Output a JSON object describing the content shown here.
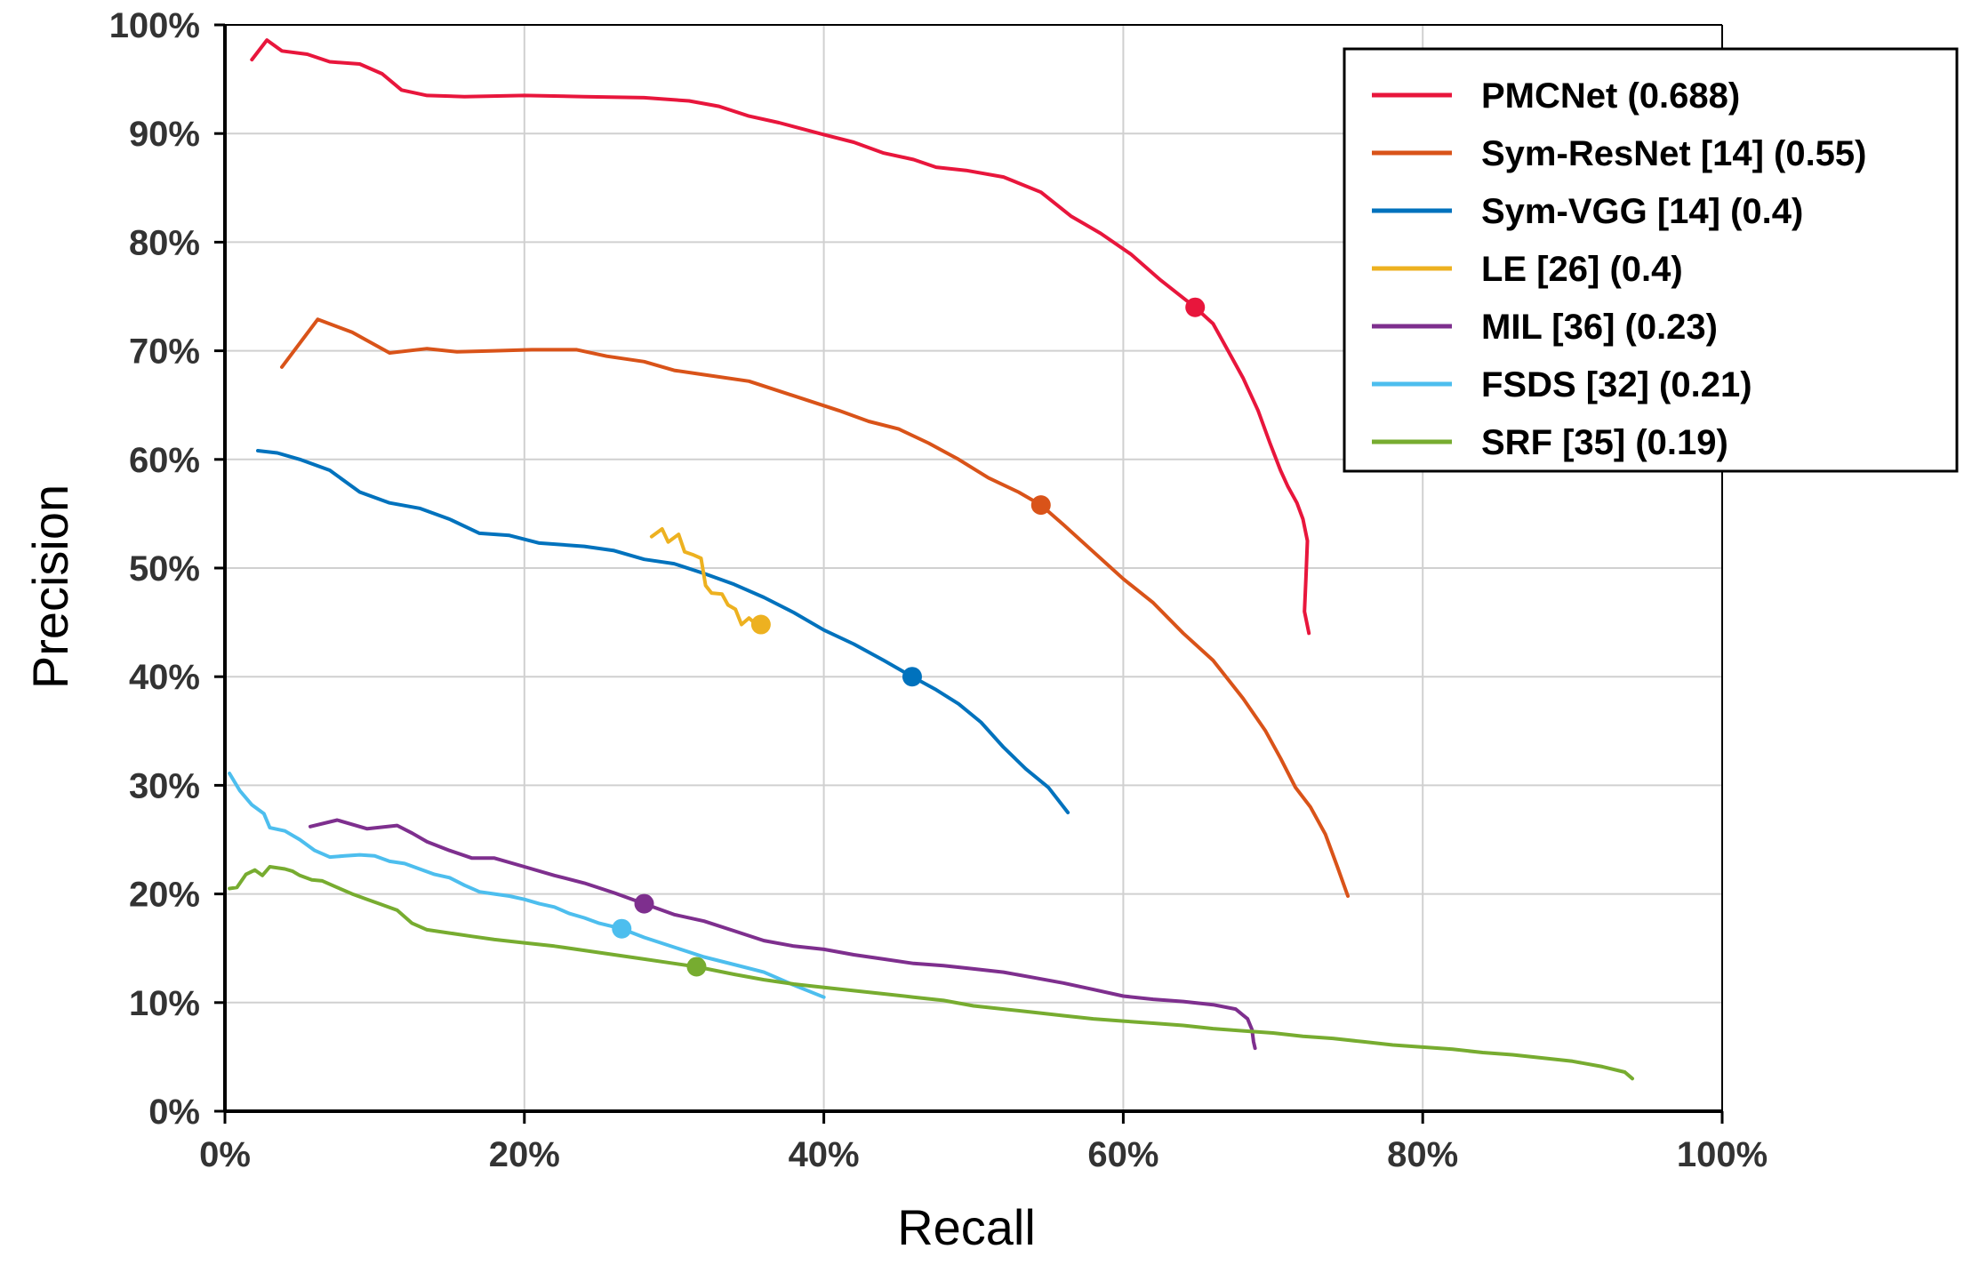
{
  "chart_data": {
    "type": "line",
    "title": "",
    "xlabel": "Recall",
    "ylabel": "Precision",
    "xlim": [
      0,
      100
    ],
    "ylim": [
      0,
      100
    ],
    "x_ticks": [
      0,
      20,
      40,
      60,
      80,
      100
    ],
    "x_tick_labels": [
      "0%",
      "20%",
      "40%",
      "60%",
      "80%",
      "100%"
    ],
    "y_ticks": [
      0,
      10,
      20,
      30,
      40,
      50,
      60,
      70,
      80,
      90,
      100
    ],
    "y_tick_labels": [
      "0%",
      "10%",
      "20%",
      "30%",
      "40%",
      "50%",
      "60%",
      "70%",
      "80%",
      "90%",
      "100%"
    ],
    "grid": true,
    "legend_position": "top-right",
    "series": [
      {
        "name": "PMCNet (0.688)",
        "color": "#e8163c",
        "marker": [
          64.8,
          74
        ],
        "points": [
          [
            1.8,
            96.8
          ],
          [
            2.8,
            98.6
          ],
          [
            3.8,
            97.6
          ],
          [
            5.5,
            97.3
          ],
          [
            7,
            96.6
          ],
          [
            9,
            96.4
          ],
          [
            10.5,
            95.5
          ],
          [
            11.8,
            94
          ],
          [
            13.5,
            93.5
          ],
          [
            16,
            93.4
          ],
          [
            20,
            93.5
          ],
          [
            24,
            93.4
          ],
          [
            28,
            93.3
          ],
          [
            31,
            93
          ],
          [
            33,
            92.5
          ],
          [
            35,
            91.6
          ],
          [
            37,
            91
          ],
          [
            40,
            89.9
          ],
          [
            42,
            89.2
          ],
          [
            44,
            88.2
          ],
          [
            46,
            87.6
          ],
          [
            47.5,
            86.9
          ],
          [
            49.5,
            86.6
          ],
          [
            52,
            86
          ],
          [
            54.5,
            84.6
          ],
          [
            56.5,
            82.4
          ],
          [
            58.5,
            80.8
          ],
          [
            60.5,
            78.9
          ],
          [
            62.5,
            76.5
          ],
          [
            64.8,
            74
          ],
          [
            66,
            72.5
          ],
          [
            67,
            70
          ],
          [
            68,
            67.5
          ],
          [
            69,
            64.5
          ],
          [
            69.8,
            61.5
          ],
          [
            70.5,
            59
          ],
          [
            71,
            57.5
          ],
          [
            71.6,
            56
          ],
          [
            72,
            54.5
          ],
          [
            72.3,
            52.5
          ],
          [
            72.2,
            49
          ],
          [
            72.1,
            46
          ],
          [
            72.4,
            44
          ]
        ]
      },
      {
        "name": "Sym-ResNet [14] (0.55)",
        "color": "#d95319",
        "marker": [
          54.5,
          55.8
        ],
        "points": [
          [
            3.8,
            68.5
          ],
          [
            6.2,
            72.9
          ],
          [
            8.5,
            71.7
          ],
          [
            11,
            69.8
          ],
          [
            13.5,
            70.2
          ],
          [
            15.5,
            69.9
          ],
          [
            18,
            70
          ],
          [
            20.5,
            70.1
          ],
          [
            23.5,
            70.1
          ],
          [
            25.5,
            69.5
          ],
          [
            28,
            69
          ],
          [
            30,
            68.2
          ],
          [
            32,
            67.8
          ],
          [
            35,
            67.2
          ],
          [
            37,
            66.3
          ],
          [
            39,
            65.4
          ],
          [
            41,
            64.5
          ],
          [
            43,
            63.5
          ],
          [
            45,
            62.8
          ],
          [
            47,
            61.5
          ],
          [
            49,
            60
          ],
          [
            51,
            58.3
          ],
          [
            53,
            57
          ],
          [
            54.5,
            55.8
          ],
          [
            56,
            54
          ],
          [
            58,
            51.5
          ],
          [
            60,
            49
          ],
          [
            62,
            46.8
          ],
          [
            64,
            44
          ],
          [
            66,
            41.5
          ],
          [
            68,
            38
          ],
          [
            69.5,
            35
          ],
          [
            70.5,
            32.5
          ],
          [
            71.5,
            29.8
          ],
          [
            72.5,
            28
          ],
          [
            73.5,
            25.5
          ],
          [
            74.3,
            22.5
          ],
          [
            75,
            19.8
          ]
        ]
      },
      {
        "name": "Sym-VGG [14] (0.4)",
        "color": "#0072bd",
        "marker": [
          45.9,
          40
        ],
        "points": [
          [
            2.2,
            60.8
          ],
          [
            3.5,
            60.6
          ],
          [
            5,
            60
          ],
          [
            7,
            59
          ],
          [
            9,
            57
          ],
          [
            11,
            56
          ],
          [
            13,
            55.5
          ],
          [
            15,
            54.5
          ],
          [
            17,
            53.2
          ],
          [
            19,
            53
          ],
          [
            21,
            52.3
          ],
          [
            24,
            52
          ],
          [
            26,
            51.6
          ],
          [
            28,
            50.8
          ],
          [
            30,
            50.4
          ],
          [
            32,
            49.5
          ],
          [
            34,
            48.5
          ],
          [
            36,
            47.3
          ],
          [
            38,
            45.9
          ],
          [
            40,
            44.3
          ],
          [
            42,
            43
          ],
          [
            44,
            41.5
          ],
          [
            45.9,
            40
          ],
          [
            47.5,
            38.8
          ],
          [
            49,
            37.5
          ],
          [
            50.5,
            35.8
          ],
          [
            52,
            33.5
          ],
          [
            53.5,
            31.5
          ],
          [
            55,
            29.8
          ],
          [
            56.3,
            27.5
          ]
        ]
      },
      {
        "name": "LE [26] (0.4)",
        "color": "#edb120",
        "marker": [
          35.8,
          44.8
        ],
        "points": [
          [
            28.5,
            52.9
          ],
          [
            29.2,
            53.6
          ],
          [
            29.6,
            52.4
          ],
          [
            30.3,
            53.1
          ],
          [
            30.7,
            51.5
          ],
          [
            31.3,
            51.2
          ],
          [
            31.8,
            50.9
          ],
          [
            32.1,
            48.4
          ],
          [
            32.5,
            47.7
          ],
          [
            33.2,
            47.6
          ],
          [
            33.6,
            46.6
          ],
          [
            34.1,
            46.2
          ],
          [
            34.5,
            44.8
          ],
          [
            35,
            45.4
          ],
          [
            35.5,
            44.8
          ],
          [
            35.8,
            44.8
          ]
        ]
      },
      {
        "name": "MIL [36] (0.23)",
        "color": "#7e2f8e",
        "marker": [
          28,
          19.1
        ],
        "points": [
          [
            5.7,
            26.2
          ],
          [
            7.5,
            26.8
          ],
          [
            9.5,
            26
          ],
          [
            11.5,
            26.3
          ],
          [
            12.5,
            25.6
          ],
          [
            13.5,
            24.8
          ],
          [
            15,
            24
          ],
          [
            16.5,
            23.3
          ],
          [
            18,
            23.3
          ],
          [
            20,
            22.5
          ],
          [
            22,
            21.7
          ],
          [
            24,
            21
          ],
          [
            26,
            20.1
          ],
          [
            28,
            19.1
          ],
          [
            30,
            18.1
          ],
          [
            32,
            17.5
          ],
          [
            34,
            16.6
          ],
          [
            36,
            15.7
          ],
          [
            38,
            15.2
          ],
          [
            40,
            14.9
          ],
          [
            42,
            14.4
          ],
          [
            44,
            14
          ],
          [
            46,
            13.6
          ],
          [
            48,
            13.4
          ],
          [
            50,
            13.1
          ],
          [
            52,
            12.8
          ],
          [
            54,
            12.3
          ],
          [
            56,
            11.8
          ],
          [
            58,
            11.2
          ],
          [
            60,
            10.6
          ],
          [
            62,
            10.3
          ],
          [
            64,
            10.1
          ],
          [
            66,
            9.8
          ],
          [
            67.5,
            9.4
          ],
          [
            68.3,
            8.5
          ],
          [
            68.6,
            7.5
          ],
          [
            68.7,
            6.4
          ],
          [
            68.8,
            5.8
          ]
        ]
      },
      {
        "name": "FSDS [32] (0.21)",
        "color": "#4dbeee",
        "marker": [
          26.5,
          16.8
        ],
        "points": [
          [
            0.3,
            31.1
          ],
          [
            1,
            29.5
          ],
          [
            1.8,
            28.2
          ],
          [
            2.6,
            27.4
          ],
          [
            3,
            26.1
          ],
          [
            4,
            25.8
          ],
          [
            5,
            25
          ],
          [
            6,
            24
          ],
          [
            7,
            23.4
          ],
          [
            8,
            23.5
          ],
          [
            9,
            23.6
          ],
          [
            10,
            23.5
          ],
          [
            11,
            23
          ],
          [
            12,
            22.8
          ],
          [
            13,
            22.3
          ],
          [
            14,
            21.8
          ],
          [
            15,
            21.5
          ],
          [
            16,
            20.8
          ],
          [
            17,
            20.2
          ],
          [
            18,
            20
          ],
          [
            19,
            19.8
          ],
          [
            20,
            19.5
          ],
          [
            21,
            19.1
          ],
          [
            22,
            18.8
          ],
          [
            23,
            18.2
          ],
          [
            24,
            17.8
          ],
          [
            25,
            17.3
          ],
          [
            26.5,
            16.8
          ],
          [
            28,
            16
          ],
          [
            30,
            15.1
          ],
          [
            32,
            14.2
          ],
          [
            34,
            13.5
          ],
          [
            36,
            12.8
          ],
          [
            38,
            11.6
          ],
          [
            40,
            10.5
          ]
        ]
      },
      {
        "name": "SRF [35] (0.19)",
        "color": "#77ac30",
        "marker": [
          31.5,
          13.3
        ],
        "points": [
          [
            0.3,
            20.5
          ],
          [
            0.8,
            20.6
          ],
          [
            1.4,
            21.8
          ],
          [
            2,
            22.2
          ],
          [
            2.5,
            21.7
          ],
          [
            3,
            22.5
          ],
          [
            4,
            22.3
          ],
          [
            4.5,
            22.1
          ],
          [
            5,
            21.7
          ],
          [
            5.8,
            21.3
          ],
          [
            6.5,
            21.2
          ],
          [
            7.5,
            20.6
          ],
          [
            8.5,
            20
          ],
          [
            9.5,
            19.5
          ],
          [
            10.5,
            19
          ],
          [
            11.5,
            18.5
          ],
          [
            12.5,
            17.3
          ],
          [
            13.5,
            16.7
          ],
          [
            15,
            16.4
          ],
          [
            16.5,
            16.1
          ],
          [
            18,
            15.8
          ],
          [
            20,
            15.5
          ],
          [
            22,
            15.2
          ],
          [
            24,
            14.8
          ],
          [
            26,
            14.4
          ],
          [
            28,
            14
          ],
          [
            30,
            13.6
          ],
          [
            31.5,
            13.3
          ],
          [
            34,
            12.6
          ],
          [
            36,
            12.1
          ],
          [
            38,
            11.7
          ],
          [
            40,
            11.4
          ],
          [
            42,
            11.1
          ],
          [
            44,
            10.8
          ],
          [
            46,
            10.5
          ],
          [
            48,
            10.2
          ],
          [
            50,
            9.7
          ],
          [
            52,
            9.4
          ],
          [
            54,
            9.1
          ],
          [
            56,
            8.8
          ],
          [
            58,
            8.5
          ],
          [
            60,
            8.3
          ],
          [
            62,
            8.1
          ],
          [
            64,
            7.9
          ],
          [
            66,
            7.6
          ],
          [
            68,
            7.4
          ],
          [
            70,
            7.2
          ],
          [
            72,
            6.9
          ],
          [
            74,
            6.7
          ],
          [
            76,
            6.4
          ],
          [
            78,
            6.1
          ],
          [
            80,
            5.9
          ],
          [
            82,
            5.7
          ],
          [
            84,
            5.4
          ],
          [
            86,
            5.2
          ],
          [
            88,
            4.9
          ],
          [
            90,
            4.6
          ],
          [
            92,
            4.1
          ],
          [
            93.5,
            3.6
          ],
          [
            94,
            3
          ]
        ]
      }
    ]
  }
}
